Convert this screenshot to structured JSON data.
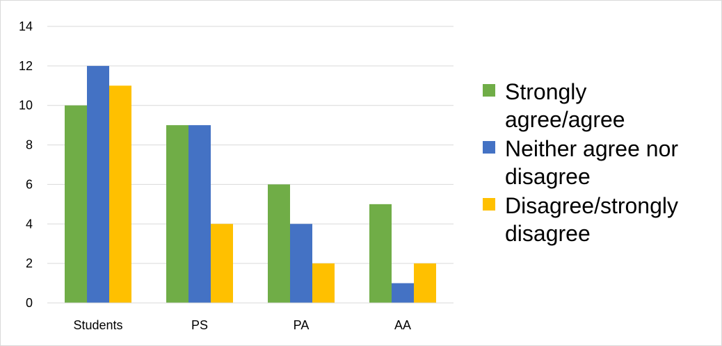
{
  "chart_data": {
    "type": "bar",
    "categories": [
      "Students",
      "PS",
      "PA",
      "AA"
    ],
    "series": [
      {
        "name": "Strongly agree/agree",
        "name_lines": [
          "Strongly",
          "agree/agree"
        ],
        "color": "#70ad47",
        "values": [
          10,
          9,
          6,
          5
        ]
      },
      {
        "name": "Neither agree nor disagree",
        "name_lines": [
          "Neither agree nor",
          "disagree"
        ],
        "color": "#4472c4",
        "values": [
          12,
          9,
          4,
          1
        ]
      },
      {
        "name": "Disagree/strongly disagree",
        "name_lines": [
          "Disagree/strongly",
          "disagree"
        ],
        "color": "#ffc000",
        "values": [
          11,
          4,
          2,
          2
        ]
      }
    ],
    "title": "",
    "xlabel": "",
    "ylabel": "",
    "ylim": [
      0,
      14
    ],
    "yticks": [
      0,
      2,
      4,
      6,
      8,
      10,
      12,
      14
    ],
    "grid": true,
    "legend_position": "right"
  }
}
